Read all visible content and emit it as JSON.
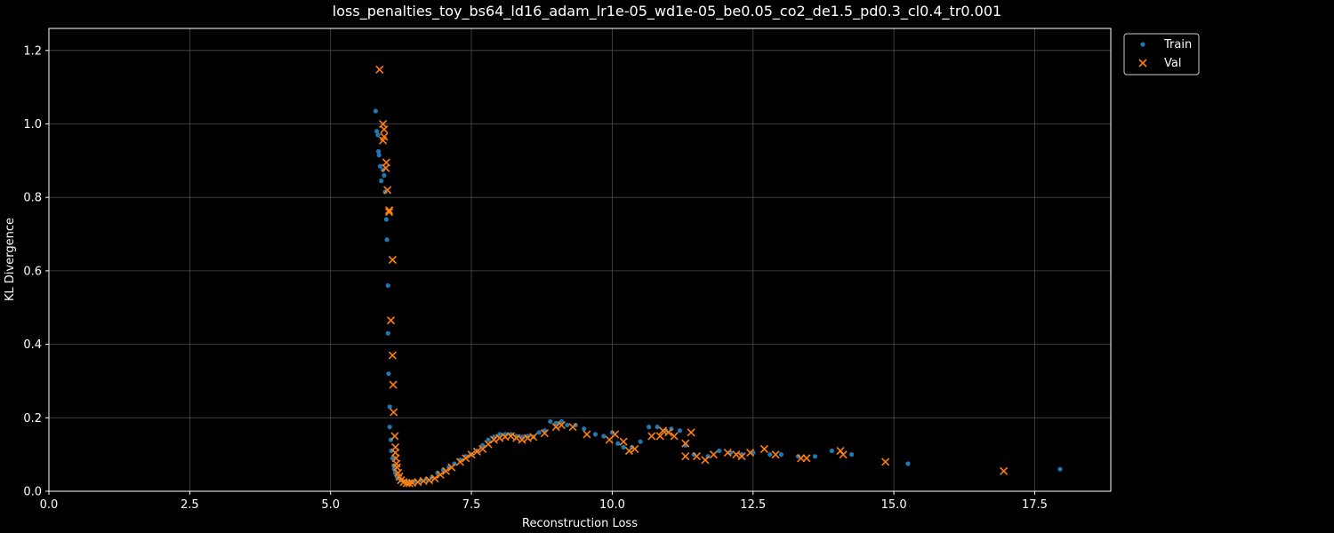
{
  "chart_data": {
    "type": "scatter",
    "title": "loss_penalties_toy_bs64_ld16_adam_lr1e-05_wd1e-05_be0.05_co2_de1.5_pd0.3_cl0.4_tr0.001",
    "xlabel": "Reconstruction Loss",
    "ylabel": "KL Divergence",
    "xlim": [
      0,
      18.85
    ],
    "ylim": [
      0,
      1.26
    ],
    "xticks": [
      0,
      2.5,
      5,
      7.5,
      10,
      12.5,
      15,
      17.5
    ],
    "xtick_labels": [
      "0.0",
      "2.5",
      "5.0",
      "7.5",
      "10.0",
      "12.5",
      "15.0",
      "17.5"
    ],
    "yticks": [
      0,
      0.2,
      0.4,
      0.6,
      0.8,
      1.0,
      1.2
    ],
    "ytick_labels": [
      "0.0",
      "0.2",
      "0.4",
      "0.6",
      "0.8",
      "1.0",
      "1.2"
    ],
    "grid": true,
    "legend_position": "outside-top-right",
    "colors": {
      "background": "#000000",
      "train": "#1f77b4",
      "val": "#ff7f0e",
      "grid": "#555555",
      "text": "#ffffff"
    },
    "series": [
      {
        "name": "Train",
        "marker": "circle",
        "points": [
          [
            5.8,
            1.035
          ],
          [
            5.82,
            0.98
          ],
          [
            5.84,
            0.97
          ],
          [
            5.85,
            0.925
          ],
          [
            5.86,
            0.915
          ],
          [
            5.88,
            0.885
          ],
          [
            5.9,
            0.845
          ],
          [
            5.93,
            0.875
          ],
          [
            5.95,
            0.86
          ],
          [
            5.97,
            0.815
          ],
          [
            5.99,
            0.74
          ],
          [
            6.0,
            0.685
          ],
          [
            6.02,
            0.56
          ],
          [
            6.02,
            0.43
          ],
          [
            6.03,
            0.32
          ],
          [
            6.05,
            0.23
          ],
          [
            6.05,
            0.175
          ],
          [
            6.07,
            0.14
          ],
          [
            6.08,
            0.11
          ],
          [
            6.1,
            0.09
          ],
          [
            6.12,
            0.07
          ],
          [
            6.13,
            0.06
          ],
          [
            6.15,
            0.05
          ],
          [
            6.18,
            0.04
          ],
          [
            6.2,
            0.035
          ],
          [
            6.25,
            0.03
          ],
          [
            6.3,
            0.027
          ],
          [
            6.35,
            0.025
          ],
          [
            6.4,
            0.025
          ],
          [
            6.45,
            0.026
          ],
          [
            6.5,
            0.027
          ],
          [
            6.6,
            0.03
          ],
          [
            6.7,
            0.033
          ],
          [
            6.8,
            0.038
          ],
          [
            6.9,
            0.05
          ],
          [
            7.0,
            0.058
          ],
          [
            7.1,
            0.065
          ],
          [
            7.2,
            0.075
          ],
          [
            7.3,
            0.085
          ],
          [
            7.4,
            0.095
          ],
          [
            7.5,
            0.1
          ],
          [
            7.6,
            0.11
          ],
          [
            7.7,
            0.125
          ],
          [
            7.8,
            0.14
          ],
          [
            7.9,
            0.148
          ],
          [
            8.0,
            0.155
          ],
          [
            8.1,
            0.155
          ],
          [
            8.2,
            0.155
          ],
          [
            8.3,
            0.15
          ],
          [
            8.4,
            0.148
          ],
          [
            8.5,
            0.15
          ],
          [
            8.6,
            0.148
          ],
          [
            8.7,
            0.16
          ],
          [
            8.8,
            0.165
          ],
          [
            8.9,
            0.19
          ],
          [
            9.0,
            0.185
          ],
          [
            9.1,
            0.19
          ],
          [
            9.2,
            0.18
          ],
          [
            9.35,
            0.18
          ],
          [
            9.5,
            0.17
          ],
          [
            9.7,
            0.155
          ],
          [
            9.85,
            0.15
          ],
          [
            10.0,
            0.16
          ],
          [
            10.1,
            0.13
          ],
          [
            10.2,
            0.12
          ],
          [
            10.35,
            0.12
          ],
          [
            10.5,
            0.135
          ],
          [
            10.65,
            0.175
          ],
          [
            10.8,
            0.175
          ],
          [
            10.95,
            0.165
          ],
          [
            11.05,
            0.17
          ],
          [
            11.2,
            0.165
          ],
          [
            11.3,
            0.125
          ],
          [
            11.45,
            0.1
          ],
          [
            11.7,
            0.095
          ],
          [
            11.9,
            0.11
          ],
          [
            12.1,
            0.105
          ],
          [
            12.3,
            0.1
          ],
          [
            12.5,
            0.105
          ],
          [
            12.8,
            0.1
          ],
          [
            13.0,
            0.1
          ],
          [
            13.3,
            0.095
          ],
          [
            13.6,
            0.095
          ],
          [
            13.9,
            0.11
          ],
          [
            14.25,
            0.1
          ],
          [
            15.25,
            0.075
          ],
          [
            17.95,
            0.06
          ]
        ]
      },
      {
        "name": "Val",
        "marker": "x",
        "points": [
          [
            5.87,
            1.148
          ],
          [
            5.93,
            1.0
          ],
          [
            5.95,
            0.985
          ],
          [
            5.95,
            0.965
          ],
          [
            5.93,
            0.955
          ],
          [
            5.99,
            0.895
          ],
          [
            5.98,
            0.88
          ],
          [
            6.01,
            0.82
          ],
          [
            6.04,
            0.765
          ],
          [
            6.04,
            0.76
          ],
          [
            6.1,
            0.63
          ],
          [
            6.07,
            0.465
          ],
          [
            6.1,
            0.37
          ],
          [
            6.11,
            0.29
          ],
          [
            6.12,
            0.215
          ],
          [
            6.14,
            0.15
          ],
          [
            6.15,
            0.12
          ],
          [
            6.15,
            0.105
          ],
          [
            6.16,
            0.09
          ],
          [
            6.17,
            0.075
          ],
          [
            6.18,
            0.065
          ],
          [
            6.2,
            0.05
          ],
          [
            6.22,
            0.04
          ],
          [
            6.25,
            0.03
          ],
          [
            6.3,
            0.025
          ],
          [
            6.35,
            0.022
          ],
          [
            6.4,
            0.022
          ],
          [
            6.45,
            0.023
          ],
          [
            6.55,
            0.025
          ],
          [
            6.65,
            0.028
          ],
          [
            6.75,
            0.03
          ],
          [
            6.85,
            0.035
          ],
          [
            6.95,
            0.045
          ],
          [
            7.05,
            0.055
          ],
          [
            7.15,
            0.065
          ],
          [
            7.3,
            0.08
          ],
          [
            7.4,
            0.09
          ],
          [
            7.5,
            0.1
          ],
          [
            7.6,
            0.108
          ],
          [
            7.7,
            0.115
          ],
          [
            7.8,
            0.128
          ],
          [
            7.9,
            0.14
          ],
          [
            8.0,
            0.145
          ],
          [
            8.1,
            0.148
          ],
          [
            8.2,
            0.15
          ],
          [
            8.3,
            0.145
          ],
          [
            8.4,
            0.14
          ],
          [
            8.5,
            0.145
          ],
          [
            8.6,
            0.148
          ],
          [
            8.8,
            0.158
          ],
          [
            9.0,
            0.175
          ],
          [
            9.1,
            0.18
          ],
          [
            9.3,
            0.175
          ],
          [
            9.55,
            0.155
          ],
          [
            9.95,
            0.14
          ],
          [
            10.05,
            0.155
          ],
          [
            10.2,
            0.135
          ],
          [
            10.3,
            0.11
          ],
          [
            10.4,
            0.115
          ],
          [
            10.7,
            0.15
          ],
          [
            10.85,
            0.15
          ],
          [
            10.9,
            0.165
          ],
          [
            11.0,
            0.16
          ],
          [
            11.1,
            0.15
          ],
          [
            11.3,
            0.13
          ],
          [
            11.3,
            0.095
          ],
          [
            11.4,
            0.16
          ],
          [
            11.5,
            0.095
          ],
          [
            11.65,
            0.085
          ],
          [
            11.8,
            0.1
          ],
          [
            12.05,
            0.105
          ],
          [
            12.2,
            0.1
          ],
          [
            12.3,
            0.095
          ],
          [
            12.45,
            0.105
          ],
          [
            12.7,
            0.115
          ],
          [
            12.9,
            0.1
          ],
          [
            13.35,
            0.09
          ],
          [
            13.45,
            0.09
          ],
          [
            14.05,
            0.11
          ],
          [
            14.1,
            0.1
          ],
          [
            14.85,
            0.08
          ],
          [
            16.95,
            0.055
          ]
        ]
      }
    ]
  }
}
